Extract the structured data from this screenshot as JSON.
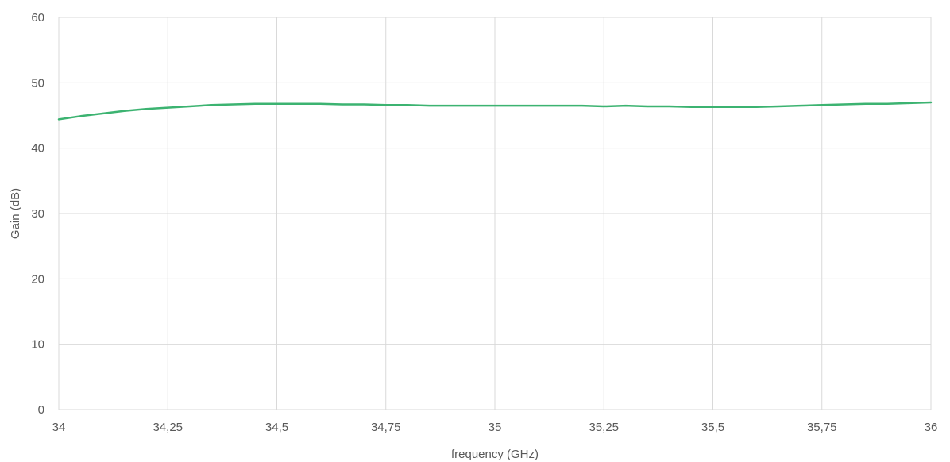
{
  "chart_data": {
    "type": "line",
    "title": "",
    "xlabel": "frequency (GHz)",
    "ylabel": "Gain (dB)",
    "xlim": [
      34,
      36
    ],
    "ylim": [
      0,
      60
    ],
    "grid": true,
    "legend": "none",
    "x_ticks": [
      {
        "value": 34,
        "label": "34"
      },
      {
        "value": 34.25,
        "label": "34,25"
      },
      {
        "value": 34.5,
        "label": "34,5"
      },
      {
        "value": 34.75,
        "label": "34,75"
      },
      {
        "value": 35,
        "label": "35"
      },
      {
        "value": 35.25,
        "label": "35,25"
      },
      {
        "value": 35.5,
        "label": "35,5"
      },
      {
        "value": 35.75,
        "label": "35,75"
      },
      {
        "value": 36,
        "label": "36"
      }
    ],
    "y_ticks": [
      {
        "value": 0,
        "label": "0"
      },
      {
        "value": 10,
        "label": "10"
      },
      {
        "value": 20,
        "label": "20"
      },
      {
        "value": 30,
        "label": "30"
      },
      {
        "value": 40,
        "label": "40"
      },
      {
        "value": 50,
        "label": "50"
      },
      {
        "value": 60,
        "label": "60"
      }
    ],
    "series": [
      {
        "color": "#3cb371",
        "x": [
          34.0,
          34.05,
          34.1,
          34.15,
          34.2,
          34.25,
          34.3,
          34.35,
          34.4,
          34.45,
          34.5,
          34.55,
          34.6,
          34.65,
          34.7,
          34.75,
          34.8,
          34.85,
          34.9,
          34.95,
          35.0,
          35.05,
          35.1,
          35.15,
          35.2,
          35.25,
          35.3,
          35.35,
          35.4,
          35.45,
          35.5,
          35.55,
          35.6,
          35.65,
          35.7,
          35.75,
          35.8,
          35.85,
          35.9,
          35.95,
          36.0
        ],
        "y": [
          44.4,
          44.9,
          45.3,
          45.7,
          46.0,
          46.2,
          46.4,
          46.6,
          46.7,
          46.8,
          46.8,
          46.8,
          46.8,
          46.7,
          46.7,
          46.6,
          46.6,
          46.5,
          46.5,
          46.5,
          46.5,
          46.5,
          46.5,
          46.5,
          46.5,
          46.4,
          46.5,
          46.4,
          46.4,
          46.3,
          46.3,
          46.3,
          46.3,
          46.4,
          46.5,
          46.6,
          46.7,
          46.8,
          46.8,
          46.9,
          47.0
        ]
      }
    ]
  }
}
